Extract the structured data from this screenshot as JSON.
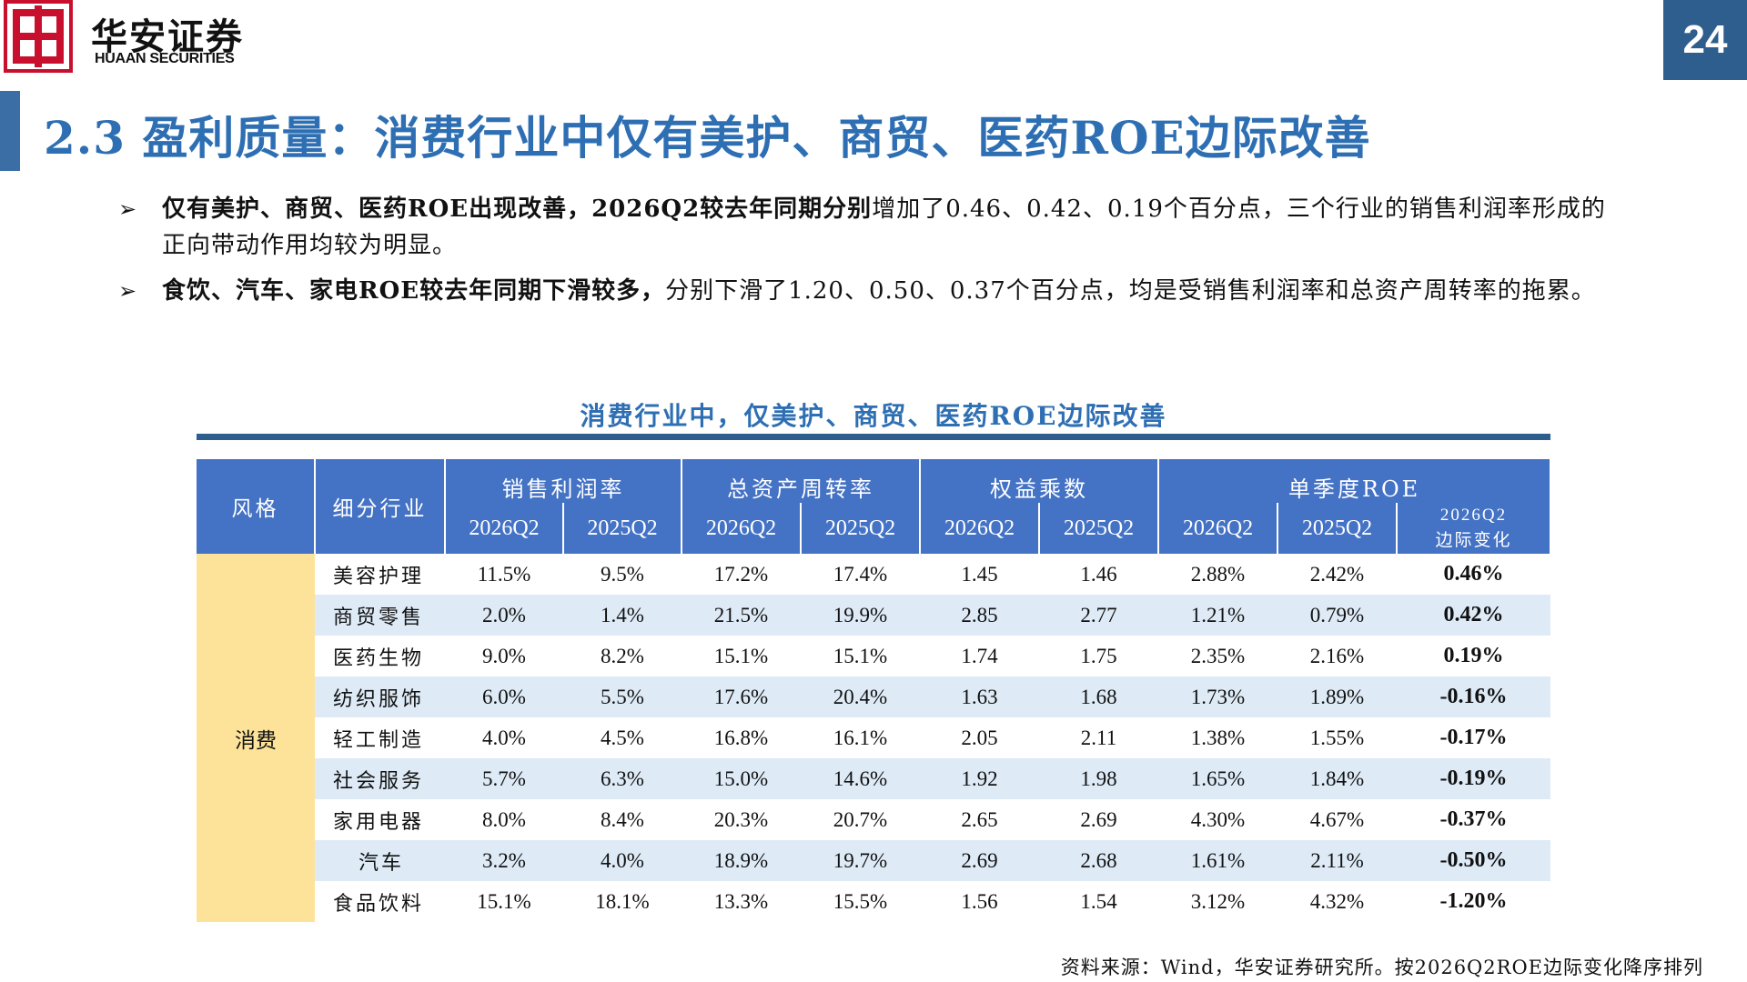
{
  "header": {
    "brand_cn": "华安证券",
    "brand_en": "HUAAN SECURITIES",
    "page_number": "24",
    "logo_color": "#c8102e"
  },
  "title": "2.3 盈利质量：消费行业中仅有美护、商贸、医药ROE边际改善",
  "bullets": [
    {
      "bold": "仅有美护、商贸、医药ROE出现改善，2026Q2较去年同期分别",
      "text": "增加了0.46、0.42、0.19个百分点，三个行业的销售利润率形成的正向带动作用均较为明显。"
    },
    {
      "bold": "食饮、汽车、家电ROE较去年同期下滑较多，",
      "text": "分别下滑了1.20、0.50、0.37个百分点，均是受销售利润率和总资产周转率的拖累。"
    }
  ],
  "table": {
    "title": "消费行业中，仅美护、商贸、医药ROE边际改善",
    "headers": {
      "style": "风格",
      "industry": "细分行业",
      "groups": [
        "销售利润率",
        "总资产周转率",
        "权益乘数",
        "单季度ROE"
      ],
      "sub": [
        "2026Q2",
        "2025Q2",
        "2026Q2",
        "2025Q2",
        "2026Q2",
        "2025Q2",
        "2026Q2",
        "2025Q2"
      ],
      "change_line1": "2026Q2",
      "change_line2": "边际变化"
    },
    "category": "消费",
    "rows": [
      [
        "美容护理",
        "11.5%",
        "9.5%",
        "17.2%",
        "17.4%",
        "1.45",
        "1.46",
        "2.88%",
        "2.42%",
        "0.46%"
      ],
      [
        "商贸零售",
        "2.0%",
        "1.4%",
        "21.5%",
        "19.9%",
        "2.85",
        "2.77",
        "1.21%",
        "0.79%",
        "0.42%"
      ],
      [
        "医药生物",
        "9.0%",
        "8.2%",
        "15.1%",
        "15.1%",
        "1.74",
        "1.75",
        "2.35%",
        "2.16%",
        "0.19%"
      ],
      [
        "纺织服饰",
        "6.0%",
        "5.5%",
        "17.6%",
        "20.4%",
        "1.63",
        "1.68",
        "1.73%",
        "1.89%",
        "-0.16%"
      ],
      [
        "轻工制造",
        "4.0%",
        "4.5%",
        "16.8%",
        "16.1%",
        "2.05",
        "2.11",
        "1.38%",
        "1.55%",
        "-0.17%"
      ],
      [
        "社会服务",
        "5.7%",
        "6.3%",
        "15.0%",
        "14.6%",
        "1.92",
        "1.98",
        "1.65%",
        "1.84%",
        "-0.19%"
      ],
      [
        "家用电器",
        "8.0%",
        "8.4%",
        "20.3%",
        "20.7%",
        "2.65",
        "2.69",
        "4.30%",
        "4.67%",
        "-0.37%"
      ],
      [
        "汽车",
        "3.2%",
        "4.0%",
        "18.9%",
        "19.7%",
        "2.69",
        "2.68",
        "1.61%",
        "2.11%",
        "-0.50%"
      ],
      [
        "食品饮料",
        "15.1%",
        "18.1%",
        "13.3%",
        "15.5%",
        "1.56",
        "1.54",
        "3.12%",
        "4.32%",
        "-1.20%"
      ]
    ]
  },
  "source": "资料来源：Wind，华安证券研究所。按2026Q2ROE边际变化降序排列"
}
